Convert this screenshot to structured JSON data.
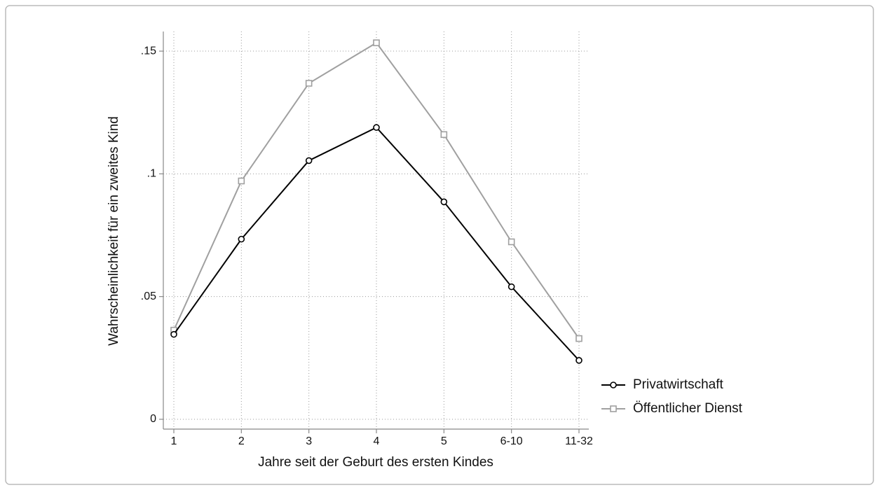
{
  "chart_data": {
    "type": "line",
    "x_label": "Jahre seit der Geburt des ersten Kindes",
    "y_label": "Wahrscheinlichkeit für ein zweites Kind",
    "categories": [
      "1",
      "2",
      "3",
      "4",
      "5",
      "6-10",
      "11-32"
    ],
    "series": [
      {
        "name": "Privatwirtschaft",
        "color": "#000000",
        "marker": "circle",
        "values": [
          0.0346,
          0.0734,
          0.1054,
          0.1189,
          0.0886,
          0.054,
          0.024
        ]
      },
      {
        "name": "Öffentlicher Dienst",
        "color": "#a0a0a0",
        "marker": "square",
        "values": [
          0.0363,
          0.0971,
          0.1369,
          0.1534,
          0.116,
          0.0723,
          0.0329
        ]
      }
    ],
    "ylim": [
      -0.004,
      0.158
    ],
    "yticks": [
      0,
      {
        "value": 0.05,
        "label": ".05"
      },
      {
        "value": 0.1,
        "label": ".1"
      },
      {
        "value": 0.15,
        "label": ".15"
      }
    ],
    "grid": true,
    "legend": "right"
  }
}
